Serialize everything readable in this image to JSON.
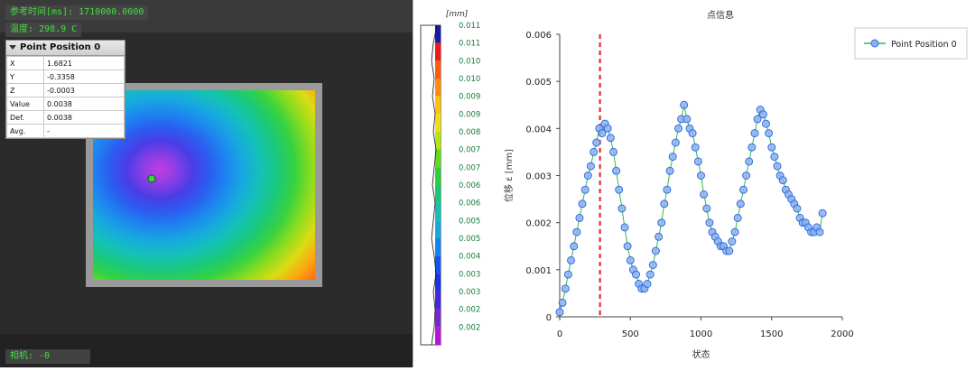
{
  "viewer": {
    "ref_time": "参考时间[ms]: 1710000.0000",
    "temperature": "温度: 298.9 C",
    "camera": "相机: -0",
    "point_panel": {
      "title": "Point Position 0",
      "rows": [
        {
          "key": "X",
          "value": "1.6821"
        },
        {
          "key": "Y",
          "value": "-0.3358"
        },
        {
          "key": "Z",
          "value": "-0.0003"
        },
        {
          "key": "Value",
          "value": "0.0038"
        },
        {
          "key": "Def.",
          "value": "0.0038"
        },
        {
          "key": "Avg.",
          "value": "-"
        }
      ]
    }
  },
  "colorbar": {
    "unit": "[mm]",
    "ticks": [
      "0.011",
      "0.011",
      "0.010",
      "0.010",
      "0.009",
      "0.009",
      "0.008",
      "0.007",
      "0.007",
      "0.006",
      "0.006",
      "0.005",
      "0.005",
      "0.004",
      "0.003",
      "0.003",
      "0.002",
      "0.002"
    ],
    "colors": [
      "#1a1aa8",
      "#f01818",
      "#ff5a14",
      "#ff8c10",
      "#ffc00c",
      "#f0e010",
      "#b4e614",
      "#64dc1e",
      "#28d23c",
      "#14c878",
      "#14c0b4",
      "#14aadc",
      "#1482f0",
      "#1455f0",
      "#1e32e6",
      "#4628dc",
      "#7828d2",
      "#b414dc"
    ]
  },
  "chart_data": {
    "type": "line",
    "title": "点信息",
    "xlabel": "状态",
    "ylabel": "位移 ε [mm]",
    "xlim": [
      0,
      2000
    ],
    "ylim": [
      0,
      0.006
    ],
    "x_ticks": [
      "0",
      "500",
      "1000",
      "1500",
      "2000"
    ],
    "y_ticks": [
      "0",
      "0.001",
      "0.002",
      "0.003",
      "0.004",
      "0.005",
      "0.006"
    ],
    "grid": false,
    "legend_position": "top-right",
    "marker_line_x": 285,
    "series": [
      {
        "name": "Point Position 0",
        "color": "#2f6fe0",
        "x": [
          0,
          20,
          40,
          60,
          80,
          100,
          120,
          140,
          160,
          180,
          200,
          220,
          240,
          260,
          280,
          300,
          320,
          340,
          360,
          380,
          400,
          420,
          440,
          460,
          480,
          500,
          520,
          540,
          560,
          580,
          600,
          620,
          640,
          660,
          680,
          700,
          720,
          740,
          760,
          780,
          800,
          820,
          840,
          860,
          880,
          900,
          920,
          940,
          960,
          980,
          1000,
          1020,
          1040,
          1060,
          1080,
          1100,
          1120,
          1140,
          1160,
          1180,
          1200,
          1220,
          1240,
          1260,
          1280,
          1300,
          1320,
          1340,
          1360,
          1380,
          1400,
          1420,
          1440,
          1460,
          1480,
          1500,
          1520,
          1540,
          1560,
          1580,
          1600,
          1620,
          1640,
          1660,
          1680,
          1700,
          1720,
          1740,
          1760,
          1780,
          1800,
          1820,
          1840,
          1860
        ],
        "y": [
          0.0001,
          0.0003,
          0.0006,
          0.0009,
          0.0012,
          0.0015,
          0.0018,
          0.0021,
          0.0024,
          0.0027,
          0.003,
          0.0032,
          0.0035,
          0.0037,
          0.004,
          0.0039,
          0.0041,
          0.004,
          0.0038,
          0.0035,
          0.0031,
          0.0027,
          0.0023,
          0.0019,
          0.0015,
          0.0012,
          0.001,
          0.0009,
          0.0007,
          0.0006,
          0.0006,
          0.0007,
          0.0009,
          0.0011,
          0.0014,
          0.0017,
          0.002,
          0.0024,
          0.0027,
          0.0031,
          0.0034,
          0.0037,
          0.004,
          0.0042,
          0.0045,
          0.0042,
          0.004,
          0.0039,
          0.0036,
          0.0033,
          0.003,
          0.0026,
          0.0023,
          0.002,
          0.0018,
          0.0017,
          0.0016,
          0.0015,
          0.0015,
          0.0014,
          0.0014,
          0.0016,
          0.0018,
          0.0021,
          0.0024,
          0.0027,
          0.003,
          0.0033,
          0.0036,
          0.0039,
          0.0042,
          0.0044,
          0.0043,
          0.0041,
          0.0039,
          0.0036,
          0.0034,
          0.0032,
          0.003,
          0.0029,
          0.0027,
          0.0026,
          0.0025,
          0.0024,
          0.0023,
          0.0021,
          0.002,
          0.002,
          0.0019,
          0.0018,
          0.0018,
          0.0019,
          0.0018,
          0.0022
        ]
      }
    ]
  }
}
